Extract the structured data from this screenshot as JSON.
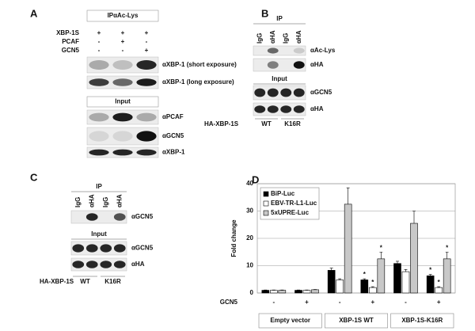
{
  "panel_a": {
    "label": "A",
    "ip_header": "IPαAc-Lys",
    "rows": [
      {
        "name": "XBP-1S",
        "signs": [
          "+",
          "+",
          "+"
        ]
      },
      {
        "name": "PCAF",
        "signs": [
          "-",
          "+",
          "-"
        ]
      },
      {
        "name": "GCN5",
        "signs": [
          "-",
          "-",
          "+"
        ]
      }
    ],
    "ip_blots": [
      "αXBP-1 (short exposure)",
      "αXBP-1 (long exposure)"
    ],
    "input_header": "Input",
    "input_blots": [
      "αPCAF",
      "αGCN5",
      "αXBP-1"
    ]
  },
  "panel_b": {
    "label": "B",
    "ip_header": "IP",
    "lanes": [
      "IgG",
      "αHA",
      "IgG",
      "αHA"
    ],
    "ip_blots": [
      "αAc-Lys",
      "αHA"
    ],
    "input_header": "Input",
    "input_blots": [
      "αGCN5",
      "αHA"
    ],
    "construct": "HA-XBP-1S",
    "groups": [
      "WT",
      "K16R"
    ]
  },
  "panel_c": {
    "label": "C",
    "ip_header": "IP",
    "lanes": [
      "IgG",
      "αHA",
      "IgG",
      "αHA"
    ],
    "ip_blots": [
      "αGCN5"
    ],
    "input_header": "Input",
    "input_blots": [
      "αGCN5",
      "αHA"
    ],
    "construct": "HA-XBP-1S",
    "groups": [
      "WT",
      "K16R"
    ]
  },
  "chart_data": {
    "panel_label": "D",
    "type": "bar",
    "ylabel": "Fold change",
    "row_label": "GCN5",
    "categories": [
      "-",
      "+",
      "-",
      "+",
      "-",
      "+"
    ],
    "group_labels": [
      "Empty vector",
      "XBP-1S WT",
      "XBP-1S-K16R"
    ],
    "series": [
      {
        "name": "BiP-Luc",
        "color": "#000000",
        "values": [
          1,
          1,
          8.3,
          4.8,
          10.8,
          6.3
        ],
        "errors": [
          0.1,
          0.1,
          0.8,
          0.4,
          0.8,
          0.5
        ],
        "annotations": [
          null,
          null,
          null,
          "*",
          null,
          "*"
        ]
      },
      {
        "name": "EBV-TR-L1-Luc",
        "color": "#ffffff",
        "values": [
          1,
          1,
          4.8,
          2,
          7.8,
          2
        ],
        "errors": [
          0.1,
          0.1,
          0.4,
          0.3,
          0.8,
          0.3
        ],
        "annotations": [
          null,
          null,
          null,
          "*",
          null,
          "*"
        ]
      },
      {
        "name": "5xUPRE-Luc",
        "color": "#c8c8c8",
        "values": [
          1,
          1.2,
          32.5,
          12.5,
          25.5,
          12.5
        ],
        "errors": [
          0.1,
          0.1,
          6,
          2.5,
          4.5,
          2.5
        ],
        "annotations": [
          null,
          null,
          null,
          "*",
          null,
          "*"
        ]
      }
    ],
    "ylim": [
      0,
      40
    ],
    "yticks": [
      0,
      10,
      20,
      30,
      40
    ],
    "grid": true,
    "legend": "upper-left"
  }
}
